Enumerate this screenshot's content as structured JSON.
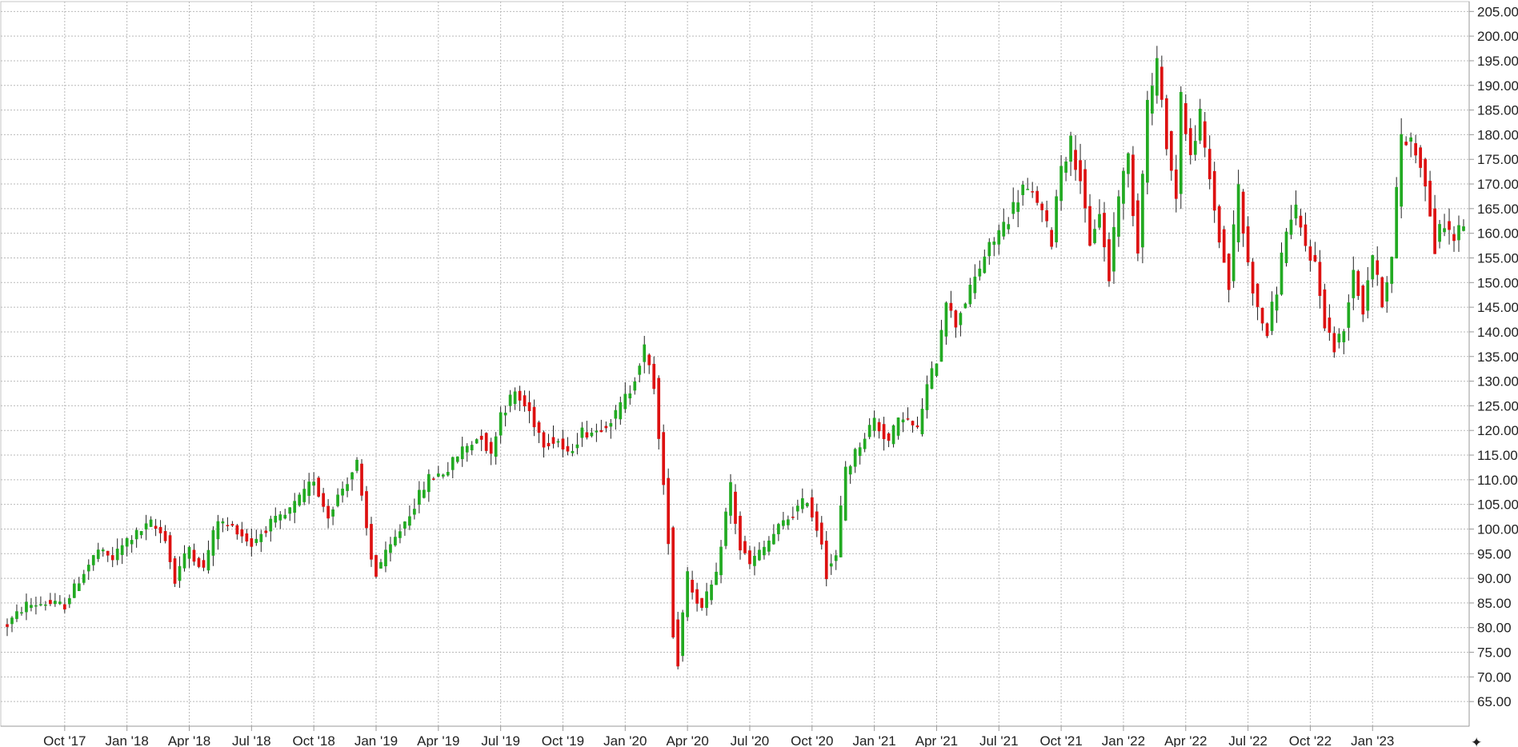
{
  "chart_data": {
    "type": "candlestick",
    "title": "",
    "xlabel": "",
    "ylabel": "",
    "ylim": [
      60,
      207
    ],
    "y_ticks": [
      "205.00",
      "200.00",
      "195.00",
      "190.00",
      "185.00",
      "180.00",
      "175.00",
      "170.00",
      "165.00",
      "160.00",
      "155.00",
      "150.00",
      "145.00",
      "140.00",
      "135.00",
      "130.00",
      "125.00",
      "120.00",
      "115.00",
      "110.00",
      "105.00",
      "100.00",
      "95.00",
      "90.00",
      "85.00",
      "80.00",
      "75.00",
      "70.00",
      "65.00"
    ],
    "y_tick_values": [
      205,
      200,
      195,
      190,
      185,
      180,
      175,
      170,
      165,
      160,
      155,
      150,
      145,
      140,
      135,
      130,
      125,
      120,
      115,
      110,
      105,
      100,
      95,
      90,
      85,
      80,
      75,
      70,
      65
    ],
    "x_ticks": [
      "Oct '17",
      "Jan '18",
      "Apr '18",
      "Jul '18",
      "Oct '18",
      "Jan '19",
      "Apr '19",
      "Jul '19",
      "Oct '19",
      "Jan '20",
      "Apr '20",
      "Jul '20",
      "Oct '20",
      "Jan '21",
      "Apr '21",
      "Jul '21",
      "Oct '21",
      "Jan '22",
      "Apr '22",
      "Jul '22",
      "Oct '22",
      "Jan '23"
    ],
    "x_tick_index": [
      12,
      25,
      38,
      51,
      64,
      77,
      90,
      103,
      116,
      129,
      142,
      155,
      168,
      181,
      194,
      207,
      220,
      233,
      246,
      259,
      272,
      285
    ],
    "grid": true,
    "up_color": "#22aa22",
    "down_color": "#dd1111",
    "series": [
      {
        "ohlc_anchors": [
          [
            0,
            80.5
          ],
          [
            4,
            84.5
          ],
          [
            8,
            85
          ],
          [
            12,
            84.5
          ],
          [
            16,
            91
          ],
          [
            19,
            95.5
          ],
          [
            22,
            94
          ],
          [
            25,
            97.5
          ],
          [
            30,
            101
          ],
          [
            33,
            98.5
          ],
          [
            35,
            90
          ],
          [
            38,
            96
          ],
          [
            41,
            92
          ],
          [
            44,
            101.5
          ],
          [
            48,
            100
          ],
          [
            51,
            97
          ],
          [
            55,
            101
          ],
          [
            58,
            102.5
          ],
          [
            62,
            107
          ],
          [
            64,
            110
          ],
          [
            67,
            103
          ],
          [
            70,
            108
          ],
          [
            73,
            113
          ],
          [
            76,
            95
          ],
          [
            77,
            91.5
          ],
          [
            80,
            96
          ],
          [
            84,
            103
          ],
          [
            88,
            110
          ],
          [
            92,
            112
          ],
          [
            95,
            116
          ],
          [
            99,
            119
          ],
          [
            101,
            115
          ],
          [
            103,
            123
          ],
          [
            106,
            127.5
          ],
          [
            109,
            124
          ],
          [
            112,
            118
          ],
          [
            115,
            118
          ],
          [
            117,
            115
          ],
          [
            120,
            119.5
          ],
          [
            123,
            120
          ],
          [
            127,
            123
          ],
          [
            130,
            128
          ],
          [
            133,
            136
          ],
          [
            135,
            130
          ],
          [
            137,
            110
          ],
          [
            138,
            100
          ],
          [
            139,
            82
          ],
          [
            140,
            74
          ],
          [
            142,
            90
          ],
          [
            145,
            84
          ],
          [
            148,
            90
          ],
          [
            151,
            108
          ],
          [
            153,
            97
          ],
          [
            155,
            93
          ],
          [
            158,
            96
          ],
          [
            161,
            100
          ],
          [
            164,
            103
          ],
          [
            167,
            106
          ],
          [
            170,
            98
          ],
          [
            171,
            92
          ],
          [
            173,
            94
          ],
          [
            175,
            111
          ],
          [
            178,
            117
          ],
          [
            181,
            122
          ],
          [
            184,
            118
          ],
          [
            187,
            123
          ],
          [
            190,
            120
          ],
          [
            192,
            128
          ],
          [
            194,
            134
          ],
          [
            196,
            146
          ],
          [
            198,
            142
          ],
          [
            201,
            148
          ],
          [
            204,
            155
          ],
          [
            207,
            160
          ],
          [
            209,
            163
          ],
          [
            212,
            169
          ],
          [
            215,
            167
          ],
          [
            218,
            159
          ],
          [
            220,
            173
          ],
          [
            222,
            178
          ],
          [
            224,
            172
          ],
          [
            226,
            158
          ],
          [
            228,
            164
          ],
          [
            230,
            152
          ],
          [
            232,
            167
          ],
          [
            234,
            175
          ],
          [
            236,
            158
          ],
          [
            238,
            184
          ],
          [
            240,
            194
          ],
          [
            242,
            180
          ],
          [
            244,
            168
          ],
          [
            245,
            186
          ],
          [
            247,
            176
          ],
          [
            249,
            183
          ],
          [
            251,
            172
          ],
          [
            253,
            160
          ],
          [
            255,
            150
          ],
          [
            257,
            168
          ],
          [
            259,
            155
          ],
          [
            261,
            145
          ],
          [
            263,
            140
          ],
          [
            265,
            148
          ],
          [
            267,
            160
          ],
          [
            269,
            164
          ],
          [
            271,
            158
          ],
          [
            273,
            154
          ],
          [
            275,
            143
          ],
          [
            277,
            137
          ],
          [
            279,
            140
          ],
          [
            281,
            152
          ],
          [
            283,
            145
          ],
          [
            285,
            155
          ],
          [
            287,
            147
          ],
          [
            289,
            154
          ],
          [
            291,
            178
          ],
          [
            293,
            179
          ],
          [
            295,
            175
          ],
          [
            297,
            165
          ],
          [
            298,
            158
          ],
          [
            300,
            162
          ],
          [
            302,
            159
          ],
          [
            304,
            162
          ]
        ],
        "count": 305
      }
    ]
  }
}
